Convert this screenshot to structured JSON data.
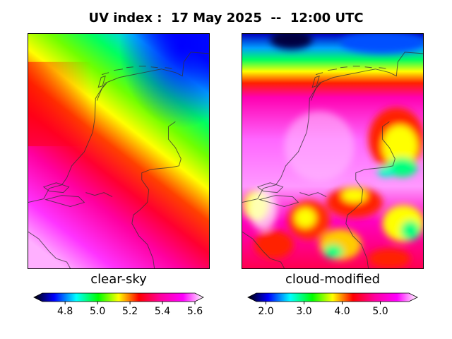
{
  "title": "UV index :  17 May 2025  --  12:00 UTC",
  "panels": {
    "left": {
      "label": "clear-sky"
    },
    "right": {
      "label": "cloud-modified"
    }
  },
  "colorbars": {
    "left": {
      "min": 4.66,
      "max": 5.6,
      "ticks": [
        "4.8",
        "5.0",
        "5.2",
        "5.4",
        "5.6"
      ],
      "tick_values": [
        4.8,
        5.0,
        5.2,
        5.4,
        5.6
      ],
      "extend": "both"
    },
    "right": {
      "min": 1.75,
      "max": 5.75,
      "ticks": [
        "2.0",
        "3.0",
        "4.0",
        "5.0"
      ],
      "tick_values": [
        2.0,
        3.0,
        4.0,
        5.0
      ],
      "extend": "both"
    }
  },
  "colormap": [
    "#000000",
    "#0000ff",
    "#00ffff",
    "#00ff00",
    "#ffff00",
    "#ff0000",
    "#ff00a0",
    "#ff00ff",
    "#ffffff"
  ],
  "region": "Netherlands"
}
